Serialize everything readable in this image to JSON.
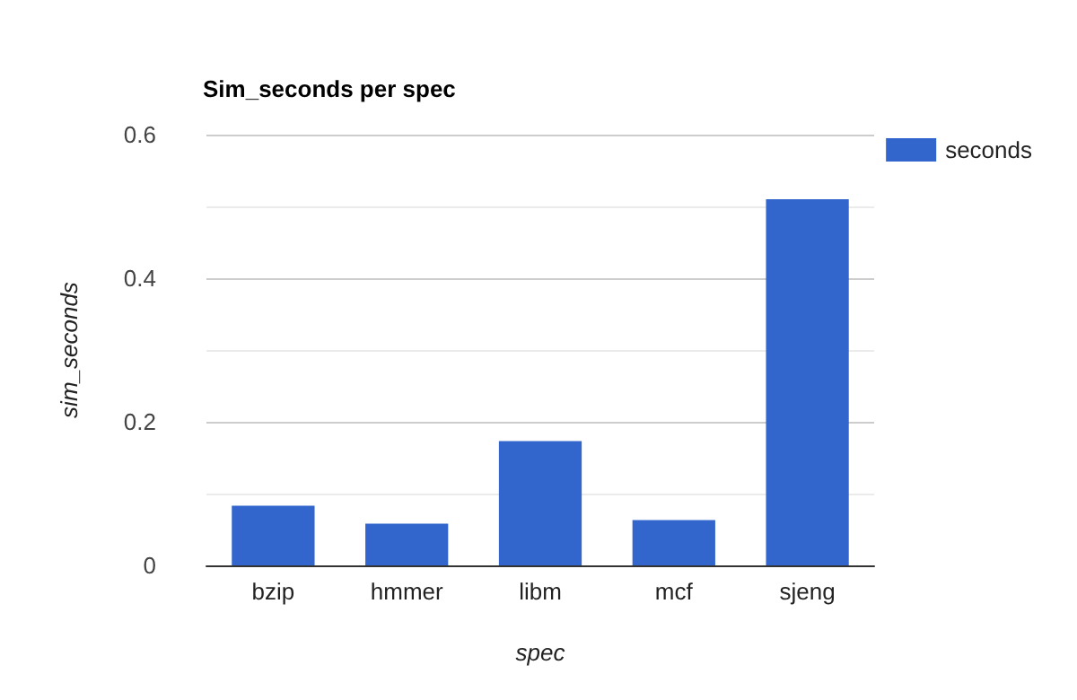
{
  "chart_data": {
    "type": "bar",
    "title": "Sim_seconds per spec",
    "xlabel": "spec",
    "ylabel": "sim_seconds",
    "categories": [
      "bzip",
      "hmmer",
      "libm",
      "mcf",
      "sjeng"
    ],
    "series": [
      {
        "name": "seconds",
        "color": "#3366cc",
        "values": [
          0.083,
          0.058,
          0.173,
          0.063,
          0.51
        ]
      }
    ],
    "ylim": [
      0,
      0.6
    ],
    "yticks": [
      0,
      {
        "value": 0.1,
        "label": null
      },
      0.2,
      {
        "value": 0.3,
        "label": null
      },
      0.4,
      {
        "value": 0.5,
        "label": null
      },
      0.6
    ],
    "grid": "y",
    "legend": "top right"
  }
}
